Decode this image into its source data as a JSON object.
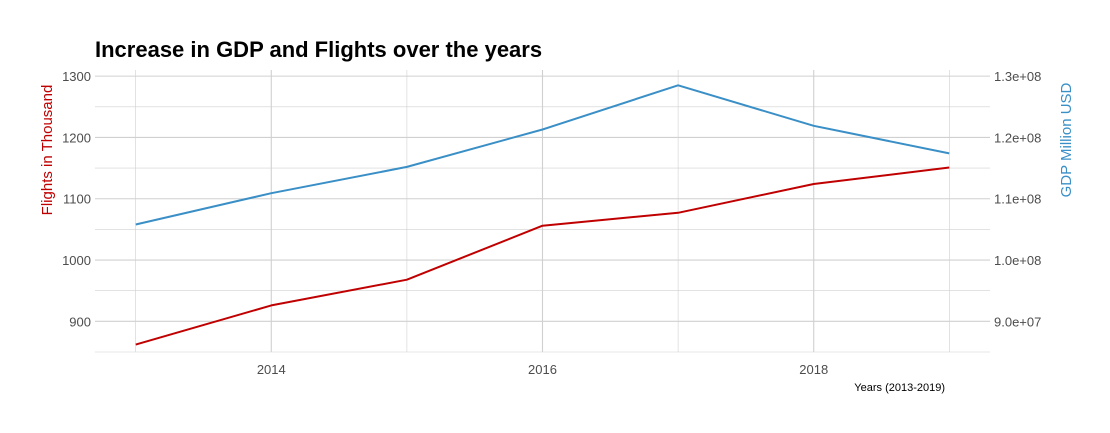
{
  "chart_data": {
    "type": "line",
    "title": "Increase in GDP and Flights over the years",
    "xlabel": "Years (2013-2019)",
    "ylabel_left": "Flights in Thousand",
    "ylabel_right": "GDP Million USD",
    "x": [
      2013,
      2014,
      2015,
      2016,
      2017,
      2018,
      2019
    ],
    "x_ticks": [
      2014,
      2016,
      2018
    ],
    "y_left_ticks": [
      "900",
      "1000",
      "1100",
      "1200",
      "1300"
    ],
    "y_right_ticks": [
      "9.0e+07",
      "1.0e+08",
      "1.1e+08",
      "1.2e+08",
      "1.3e+08"
    ],
    "series": [
      {
        "axis": "left",
        "color": "#c00000",
        "values": [
          862,
          926,
          968,
          1056,
          1077,
          1124,
          1151
        ]
      },
      {
        "axis": "right",
        "color": "#3a8fc6",
        "values": [
          105800000,
          110900000,
          115200000,
          121300000,
          128500000,
          121900000,
          117400000
        ]
      }
    ],
    "xlim": [
      2012.7,
      2019.3
    ],
    "ylim_left": [
      850,
      1310
    ],
    "ylim_right": [
      85000000,
      131000000
    ],
    "grid": true,
    "colors": {
      "left_axis_title": "#c00000",
      "right_axis_title": "#3a8fc6",
      "grid": "#d0d0d0"
    }
  }
}
